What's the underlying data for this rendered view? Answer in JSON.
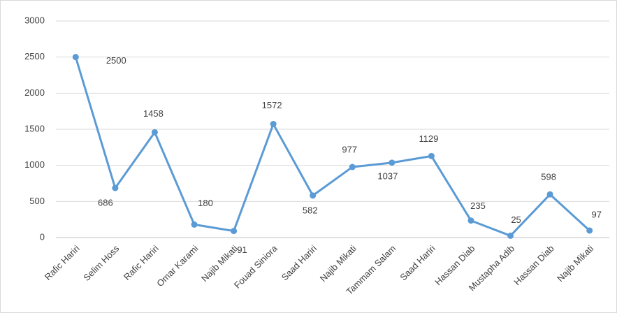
{
  "chart_data": {
    "type": "line",
    "categories": [
      "Rafic Hariri",
      "Selim Hoss",
      "Rafic Hariri",
      "Omar Karami",
      "Najib Mikati",
      "Fouad Siniora",
      "Saad Hariri",
      "Najib Mikati",
      "Tammam Salam",
      "Saad Hariri",
      "Hassan Diab",
      "Mustapha Adib",
      "Hassan Diab",
      "Najib Mikati"
    ],
    "values": [
      2500,
      686,
      1458,
      180,
      91,
      1572,
      582,
      977,
      1037,
      1129,
      235,
      25,
      598,
      97
    ],
    "color": "#5b9bd5",
    "ylim": [
      0,
      3000
    ],
    "yticks": [
      0,
      500,
      1000,
      1500,
      2000,
      2500,
      3000
    ],
    "grid": true
  }
}
